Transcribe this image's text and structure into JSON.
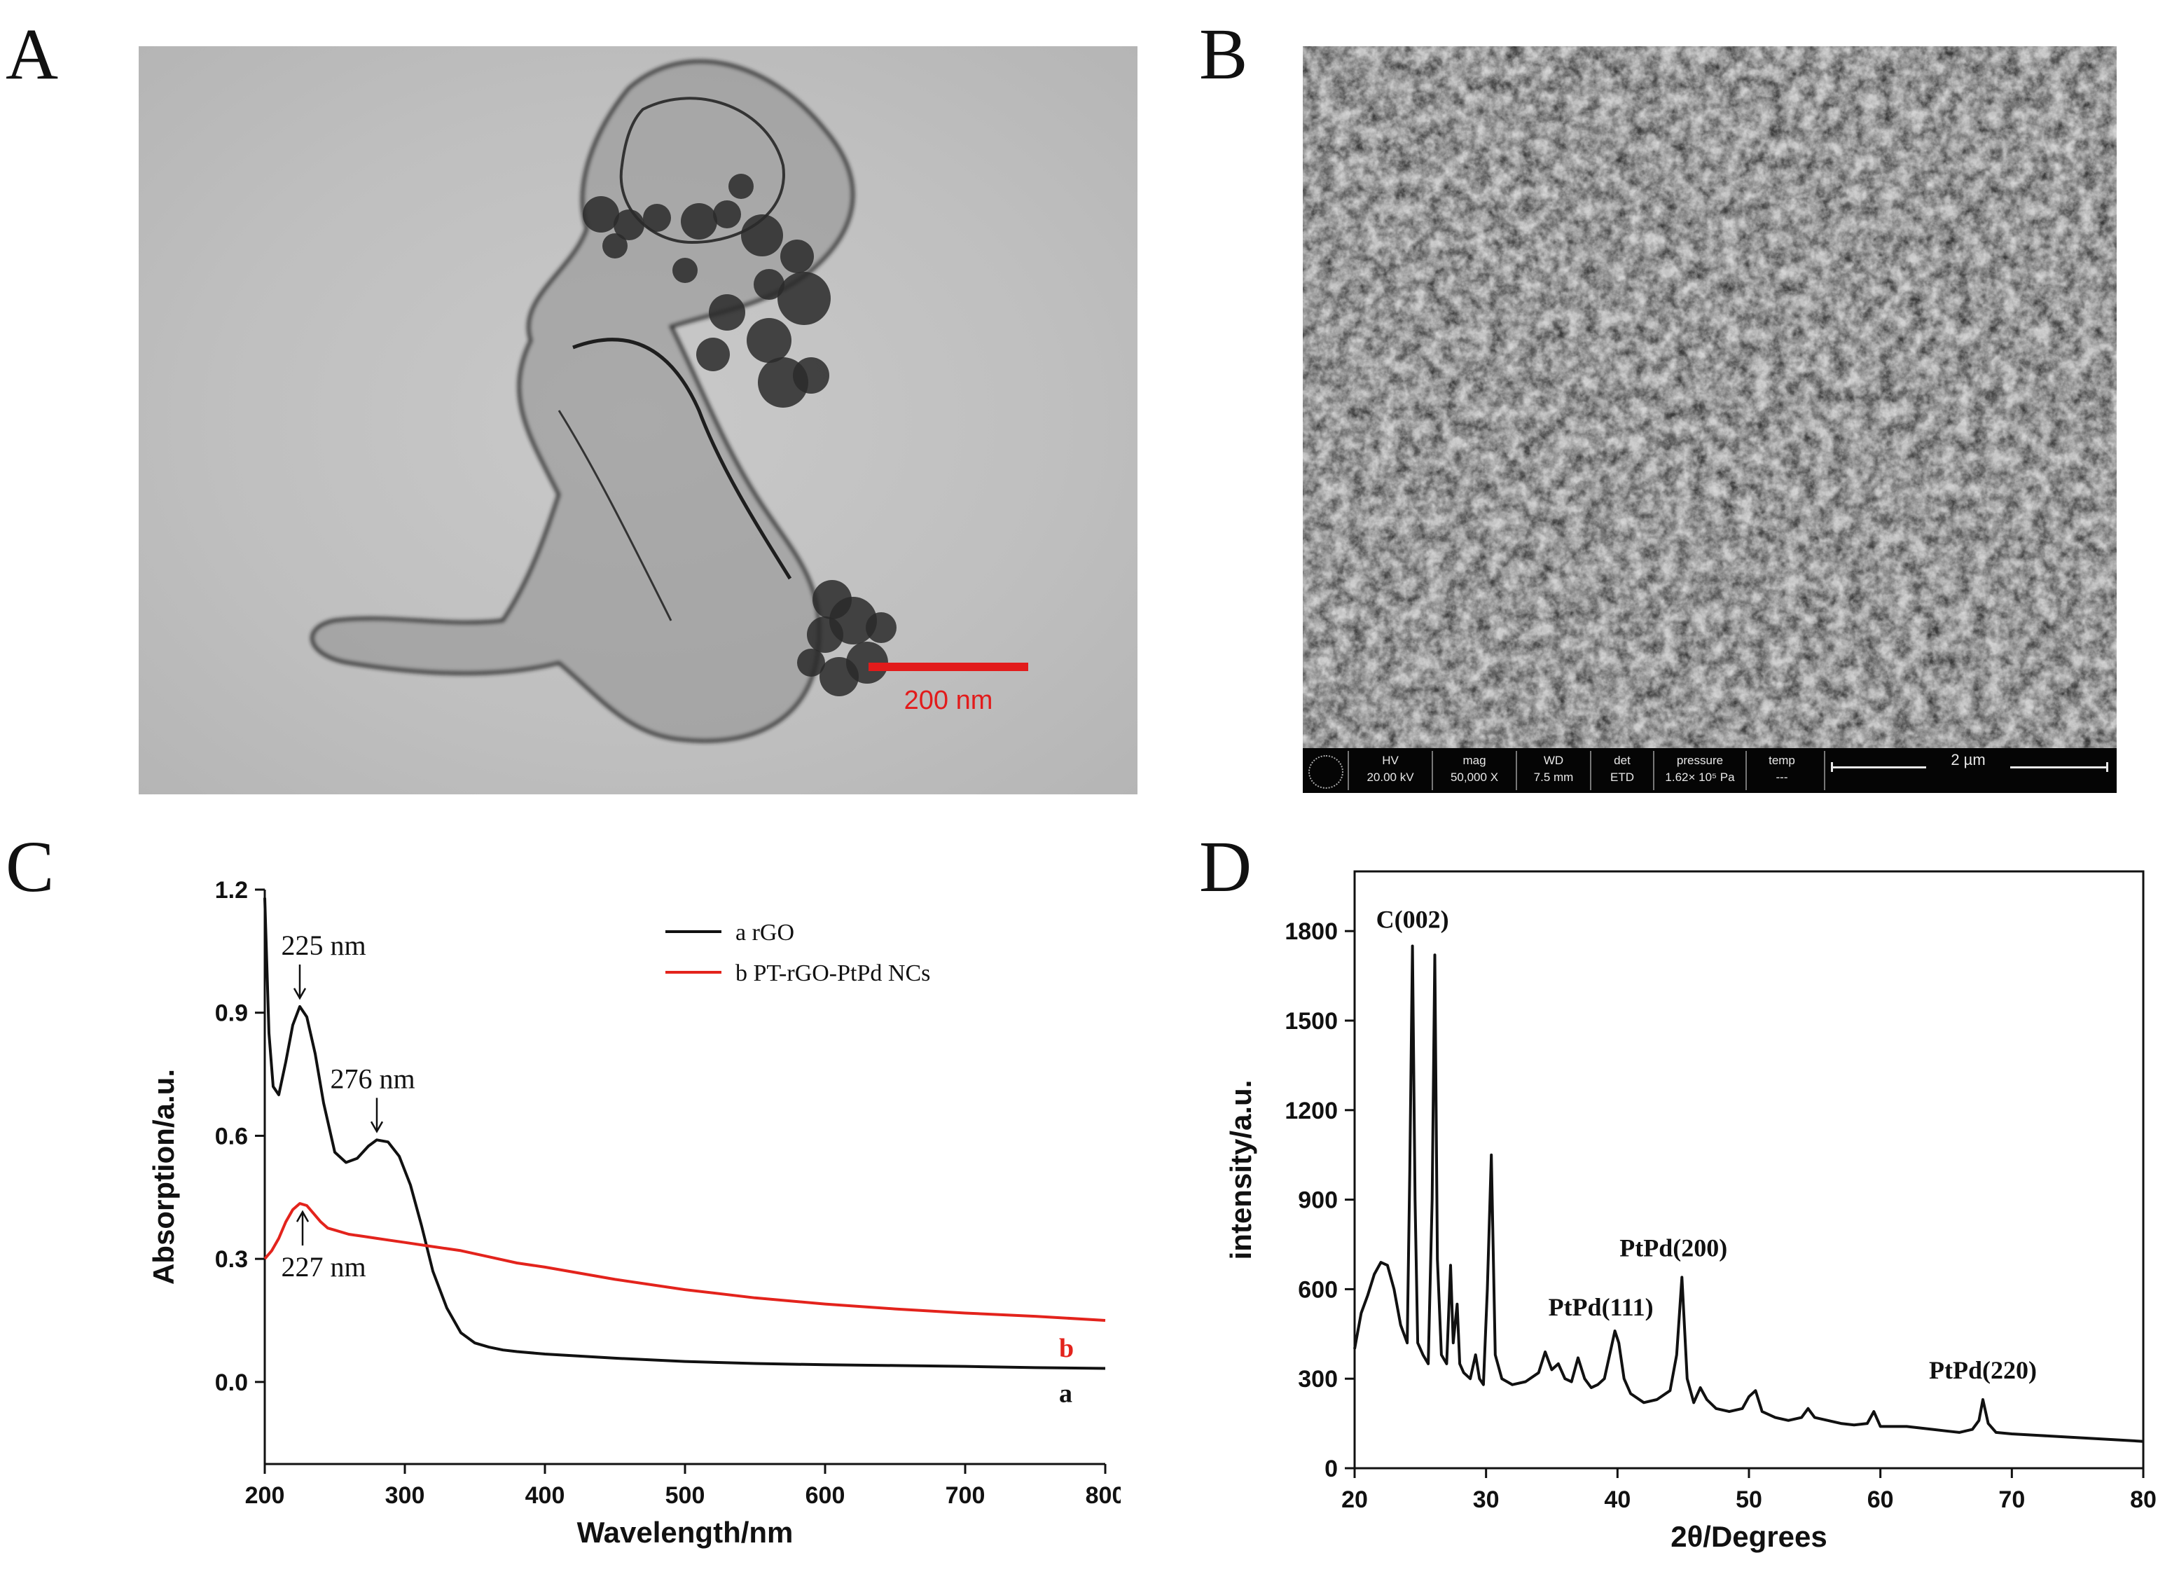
{
  "panels": {
    "a": {
      "letter": "A",
      "scale_bar_label": "200 nm"
    },
    "b": {
      "letter": "B",
      "info_bar": [
        {
          "label": "HV",
          "value": "20.00 kV"
        },
        {
          "label": "mag",
          "value": "50,000 X"
        },
        {
          "label": "WD",
          "value": "7.5 mm"
        },
        {
          "label": "det",
          "value": "ETD"
        },
        {
          "label": "pressure",
          "value": "1.62× 10⁵ Pa"
        },
        {
          "label": "temp",
          "value": "---"
        }
      ],
      "scale_bar_label": "2 µm"
    },
    "c": {
      "letter": "C"
    },
    "d": {
      "letter": "D"
    }
  },
  "chart_data": [
    {
      "type": "line",
      "panel": "C",
      "xlabel": "Wavelength/nm",
      "ylabel": "Absorption/a.u.",
      "xlim": [
        200,
        800
      ],
      "ylim": [
        -0.2,
        1.2
      ],
      "xticks": [
        200,
        300,
        400,
        500,
        600,
        700,
        800
      ],
      "yticks": [
        0.0,
        0.3,
        0.6,
        0.9,
        1.2
      ],
      "xtick_labels": [
        "200",
        "300",
        "400",
        "500",
        "600",
        "700",
        "800"
      ],
      "ytick_labels": [
        "0.0",
        "0.3",
        "0.6",
        "0.9",
        "1.2"
      ],
      "legend_position": "top-right",
      "series": [
        {
          "name": "a rGO",
          "end_label": "a",
          "color": "#111111",
          "x": [
            200,
            203,
            206,
            210,
            215,
            220,
            225,
            230,
            236,
            242,
            250,
            258,
            266,
            274,
            280,
            288,
            296,
            304,
            312,
            320,
            330,
            340,
            350,
            360,
            370,
            380,
            400,
            450,
            500,
            550,
            600,
            650,
            700,
            750,
            800
          ],
          "y": [
            1.18,
            0.85,
            0.72,
            0.7,
            0.78,
            0.87,
            0.915,
            0.89,
            0.8,
            0.68,
            0.56,
            0.535,
            0.545,
            0.575,
            0.59,
            0.585,
            0.55,
            0.48,
            0.38,
            0.27,
            0.18,
            0.12,
            0.095,
            0.085,
            0.078,
            0.074,
            0.068,
            0.058,
            0.05,
            0.045,
            0.042,
            0.04,
            0.038,
            0.035,
            0.033
          ]
        },
        {
          "name": "b PT-rGO-PtPd NCs",
          "end_label": "b",
          "color": "#e3231c",
          "x": [
            200,
            205,
            210,
            215,
            220,
            225,
            230,
            235,
            240,
            245,
            250,
            260,
            270,
            280,
            290,
            300,
            320,
            340,
            360,
            380,
            400,
            450,
            500,
            550,
            600,
            650,
            700,
            750,
            800
          ],
          "y": [
            0.3,
            0.32,
            0.35,
            0.39,
            0.42,
            0.435,
            0.43,
            0.41,
            0.39,
            0.375,
            0.37,
            0.36,
            0.355,
            0.35,
            0.345,
            0.34,
            0.33,
            0.32,
            0.305,
            0.29,
            0.28,
            0.25,
            0.225,
            0.205,
            0.19,
            0.178,
            0.168,
            0.16,
            0.15
          ]
        }
      ],
      "annotations": [
        {
          "text": "225 nm",
          "x": 225,
          "y": 0.915,
          "arrow": "down"
        },
        {
          "text": "276 nm",
          "x": 280,
          "y": 0.59,
          "arrow": "down"
        },
        {
          "text": "227 nm",
          "x": 227,
          "y": 0.435,
          "arrow": "up"
        }
      ]
    },
    {
      "type": "line",
      "panel": "D",
      "xlabel": "2θ/Degrees",
      "ylabel": "intensity/a.u.",
      "xlim": [
        20,
        80
      ],
      "ylim": [
        0,
        2000
      ],
      "xticks": [
        20,
        30,
        40,
        50,
        60,
        70,
        80
      ],
      "yticks": [
        0,
        300,
        600,
        900,
        1200,
        1500,
        1800
      ],
      "xtick_labels": [
        "20",
        "30",
        "40",
        "50",
        "60",
        "70",
        "80"
      ],
      "ytick_labels": [
        "0",
        "300",
        "600",
        "900",
        "1200",
        "1500",
        "1800"
      ],
      "series": [
        {
          "color": "#111111",
          "x": [
            20,
            20.5,
            21,
            21.5,
            22,
            22.5,
            23,
            23.5,
            24,
            24.2,
            24.4,
            24.6,
            24.8,
            25.2,
            25.6,
            25.9,
            26.1,
            26.3,
            26.6,
            27,
            27.3,
            27.5,
            27.8,
            28,
            28.3,
            28.8,
            29.2,
            29.5,
            29.8,
            30.1,
            30.4,
            30.7,
            31.2,
            32,
            33,
            34,
            34.5,
            35,
            35.5,
            36,
            36.5,
            37,
            37.5,
            38,
            38.5,
            39,
            39.5,
            39.8,
            40.1,
            40.5,
            41,
            42,
            43,
            44,
            44.5,
            44.9,
            45.3,
            45.8,
            46.3,
            46.8,
            47.5,
            48.5,
            49.5,
            50,
            50.5,
            51,
            52,
            53,
            54,
            54.5,
            55,
            56,
            57,
            58,
            59,
            59.5,
            60,
            61,
            62,
            63,
            64,
            65,
            66,
            67,
            67.5,
            67.8,
            68.2,
            68.8,
            70,
            72,
            74,
            76,
            78,
            80
          ],
          "y": [
            400,
            520,
            580,
            650,
            690,
            680,
            600,
            480,
            420,
            1000,
            1750,
            900,
            420,
            380,
            350,
            900,
            1720,
            700,
            380,
            350,
            680,
            420,
            550,
            350,
            320,
            300,
            380,
            300,
            280,
            600,
            1050,
            380,
            300,
            280,
            290,
            320,
            390,
            330,
            350,
            300,
            290,
            370,
            300,
            270,
            280,
            300,
            400,
            460,
            420,
            300,
            250,
            220,
            230,
            260,
            380,
            640,
            300,
            220,
            270,
            230,
            200,
            190,
            200,
            240,
            260,
            190,
            170,
            160,
            170,
            200,
            170,
            160,
            150,
            145,
            150,
            190,
            140,
            140,
            140,
            135,
            130,
            125,
            120,
            130,
            160,
            230,
            150,
            120,
            115,
            110,
            105,
            100,
            95,
            90
          ]
        }
      ],
      "annotations": [
        {
          "text": "C(002)",
          "x": 24.4,
          "y": 1750
        },
        {
          "text": "PtPd(111)",
          "x": 39.8,
          "y": 460
        },
        {
          "text": "PtPd(200)",
          "x": 44.9,
          "y": 640
        },
        {
          "text": "PtPd(220)",
          "x": 67.8,
          "y": 230
        }
      ]
    }
  ]
}
